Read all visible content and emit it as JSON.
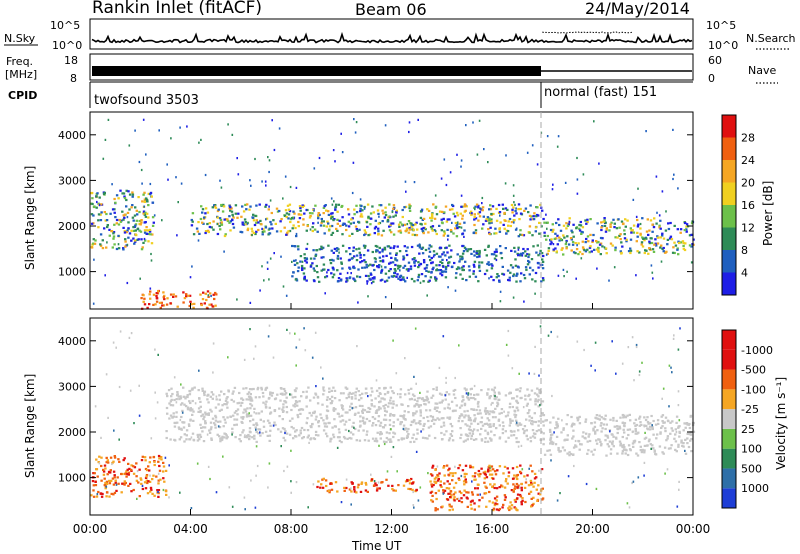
{
  "header": {
    "title": "Rankin Inlet (fitACF)",
    "beam": "Beam 06",
    "date": "24/May/2014"
  },
  "nsky_panel": {
    "left_label": "N.Sky",
    "right_label": "N.Search",
    "right_style": "dotted",
    "y_tick_top": "10^5",
    "y_tick_bottom": "10^0",
    "right_tick_top": "10^5",
    "right_tick_bottom": "10^0"
  },
  "freq_panel": {
    "left_label_line1": "Freq.",
    "left_label_line2": "[MHz]",
    "y_tick_top": "18",
    "y_tick_bottom": "8",
    "right_label": "Nave",
    "right_style": "dotted",
    "right_tick_top": "60",
    "right_tick_bottom": "0"
  },
  "cpid_panel": {
    "label": "CPID",
    "segments": [
      {
        "name": "twofsound 3503",
        "start_hour": 0,
        "end_hour": 18
      },
      {
        "name": "normal (fast) 151",
        "start_hour": 18,
        "end_hour": 24
      }
    ]
  },
  "chart_data": [
    {
      "type": "heatmap",
      "panel": "power",
      "ylabel": "Slant Range [km]",
      "xlim_hours": [
        0,
        24
      ],
      "ylim_km": [
        180,
        4500
      ],
      "y_ticks": [
        "1000",
        "2000",
        "3000",
        "4000"
      ],
      "colorbar": {
        "label": "Power [dB]",
        "ticks": [
          "4",
          "8",
          "12",
          "16",
          "20",
          "24",
          "28"
        ],
        "colors": [
          "#1e1ee6",
          "#1f5fbf",
          "#2e8b57",
          "#6cc04a",
          "#f0d020",
          "#f5a623",
          "#f06010",
          "#e01010"
        ]
      },
      "features": [
        {
          "from_hour": 0.0,
          "to_hour": 2.5,
          "range_from_km": 1500,
          "range_to_km": 2800,
          "level": "med"
        },
        {
          "from_hour": 2.0,
          "to_hour": 5.0,
          "range_from_km": 200,
          "range_to_km": 600,
          "level": "high"
        },
        {
          "from_hour": 4.0,
          "to_hour": 18.0,
          "range_from_km": 1800,
          "range_to_km": 2500,
          "level": "med"
        },
        {
          "from_hour": 8.0,
          "to_hour": 18.0,
          "range_from_km": 800,
          "range_to_km": 1600,
          "level": "low"
        },
        {
          "from_hour": 18.0,
          "to_hour": 24.0,
          "range_from_km": 1400,
          "range_to_km": 2200,
          "level": "med"
        }
      ]
    },
    {
      "type": "heatmap",
      "panel": "velocity",
      "ylabel": "Slant Range [km]",
      "xlabel": "Time UT",
      "xlim_hours": [
        0,
        24
      ],
      "ylim_km": [
        180,
        4500
      ],
      "y_ticks": [
        "1000",
        "2000",
        "3000",
        "4000"
      ],
      "x_ticks": [
        "00:00",
        "04:00",
        "08:00",
        "12:00",
        "16:00",
        "20:00",
        "00:00"
      ],
      "colorbar": {
        "label": "Velocity [m s^-1]",
        "ticks": [
          "1000",
          "500",
          "100",
          "25",
          "-25",
          "-100",
          "-500",
          "-1000"
        ],
        "colors": [
          "#1e3ed6",
          "#2e6fa8",
          "#2e8b57",
          "#6cc04a",
          "#c8c8c8",
          "#f5a623",
          "#f06010",
          "#e01010",
          "#e01010"
        ]
      },
      "features": [
        {
          "from_hour": 0.0,
          "to_hour": 3.0,
          "range_from_km": 600,
          "range_to_km": 1500,
          "vel": "neg"
        },
        {
          "from_hour": 3.0,
          "to_hour": 18.0,
          "range_from_km": 1800,
          "range_to_km": 3000,
          "vel": "gs"
        },
        {
          "from_hour": 9.0,
          "to_hour": 13.0,
          "range_from_km": 700,
          "range_to_km": 1000,
          "vel": "neg"
        },
        {
          "from_hour": 13.5,
          "to_hour": 18.0,
          "range_from_km": 300,
          "range_to_km": 1300,
          "vel": "neg"
        },
        {
          "from_hour": 18.0,
          "to_hour": 24.0,
          "range_from_km": 1500,
          "range_to_km": 2400,
          "vel": "gs"
        }
      ]
    }
  ],
  "colors": {
    "ground_scatter": "#c8c8c8",
    "background": "#ffffff",
    "mode_change_line": "#aaaaaa"
  }
}
